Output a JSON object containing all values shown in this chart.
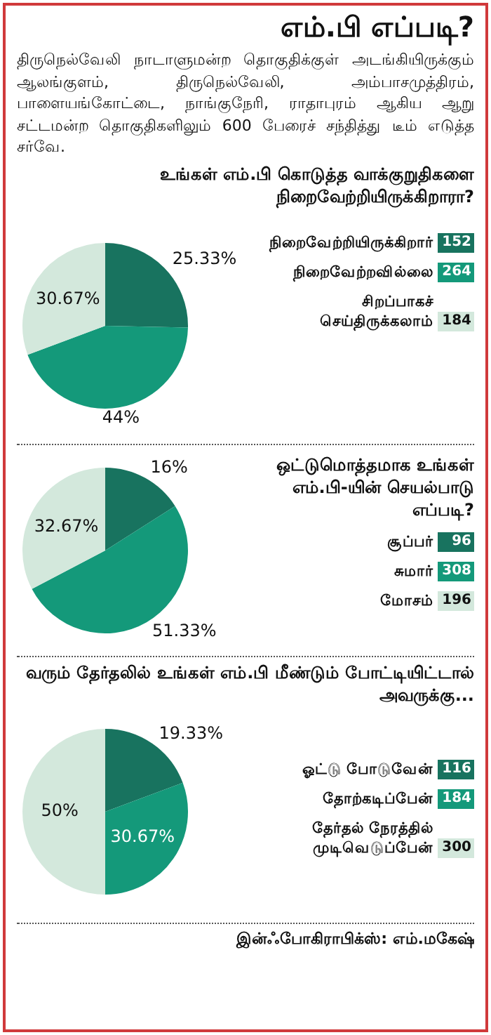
{
  "chart_data": [
    {
      "type": "other",
      "title": "எம்.பி எப்படி?",
      "subtitle": "திருநெல்வேலி நாடாளுமன்ற தொகுதிக்குள் அடங்கியிருக்கும் ஆலங்குளம், திருநெல்வேலி, அம்பாசமுத்திரம், பாளையங்கோட்டை, நாங்குநேரி, ராதாபுரம் ஆகிய ஆறு சட்டமன்ற தொகுதிகளிலும் 600 பேரைச் சந்தித்து டீம் எடுத்த சர்வே."
    },
    {
      "type": "pie",
      "title": "உங்கள் எம்.பி கொடுத்த வாக்குறுதிகளை நிறைவேற்றியிருக்கிறாரா?",
      "categories": [
        "நிறைவேற்றியிருக்கிறார்",
        "நிறைவேற்றவில்லை",
        "சிறப்பாகச் செய்திருக்கலாம்"
      ],
      "values": [
        25.33,
        44,
        30.67
      ],
      "value_labels": [
        "25.33%",
        "44%",
        "30.67%"
      ],
      "colors": [
        "#18735f",
        "#14997a",
        "#d3e8dc"
      ],
      "legend": "right",
      "annotations": [
        {
          "text": "152",
          "x": "நிறைவேற்றியிருக்கிறார்"
        },
        {
          "text": "264",
          "x": "நிறைவேற்றவில்லை"
        },
        {
          "text": "184",
          "x": "சிறப்பாகச் செய்திருக்கலாம்"
        }
      ]
    },
    {
      "type": "pie",
      "title": "ஒட்டுமொத்தமாக உங்கள் எம்.பி-யின் செயல்பாடு எப்படி?",
      "categories": [
        "சூப்பர்",
        "சுமார்",
        "மோசம்"
      ],
      "values": [
        16,
        51.33,
        32.67
      ],
      "value_labels": [
        "16%",
        "51.33%",
        "32.67%"
      ],
      "colors": [
        "#18735f",
        "#14997a",
        "#d3e8dc"
      ],
      "legend": "right",
      "annotations": [
        {
          "text": "96",
          "x": "சூப்பர்"
        },
        {
          "text": "308",
          "x": "சுமார்"
        },
        {
          "text": "196",
          "x": "மோசம்"
        }
      ]
    },
    {
      "type": "pie",
      "title": "வரும் தேர்தலில் உங்கள் எம்.பி மீண்டும் போட்டியிட்டால் அவருக்கு...",
      "categories": [
        "ஓட்டு போடுவேன்",
        "தோற்கடிப்பேன்",
        "தேர்தல் நேரத்தில் முடிவெடுப்பேன்"
      ],
      "values": [
        19.33,
        30.67,
        50
      ],
      "value_labels": [
        "19.33%",
        "30.67%",
        "50%"
      ],
      "colors": [
        "#18735f",
        "#14997a",
        "#d3e8dc"
      ],
      "legend": "right",
      "annotations": [
        {
          "text": "116",
          "x": "ஓட்டு போடுவேன்"
        },
        {
          "text": "184",
          "x": "தோற்கடிப்பேன்"
        },
        {
          "text": "300",
          "x": "தேர்தல் நேரத்தில் முடிவெடுப்பேன்"
        },
        "இன்ஃபோகிராபிக்ஸ்: எம்.மகேஷ்"
      ]
    }
  ]
}
